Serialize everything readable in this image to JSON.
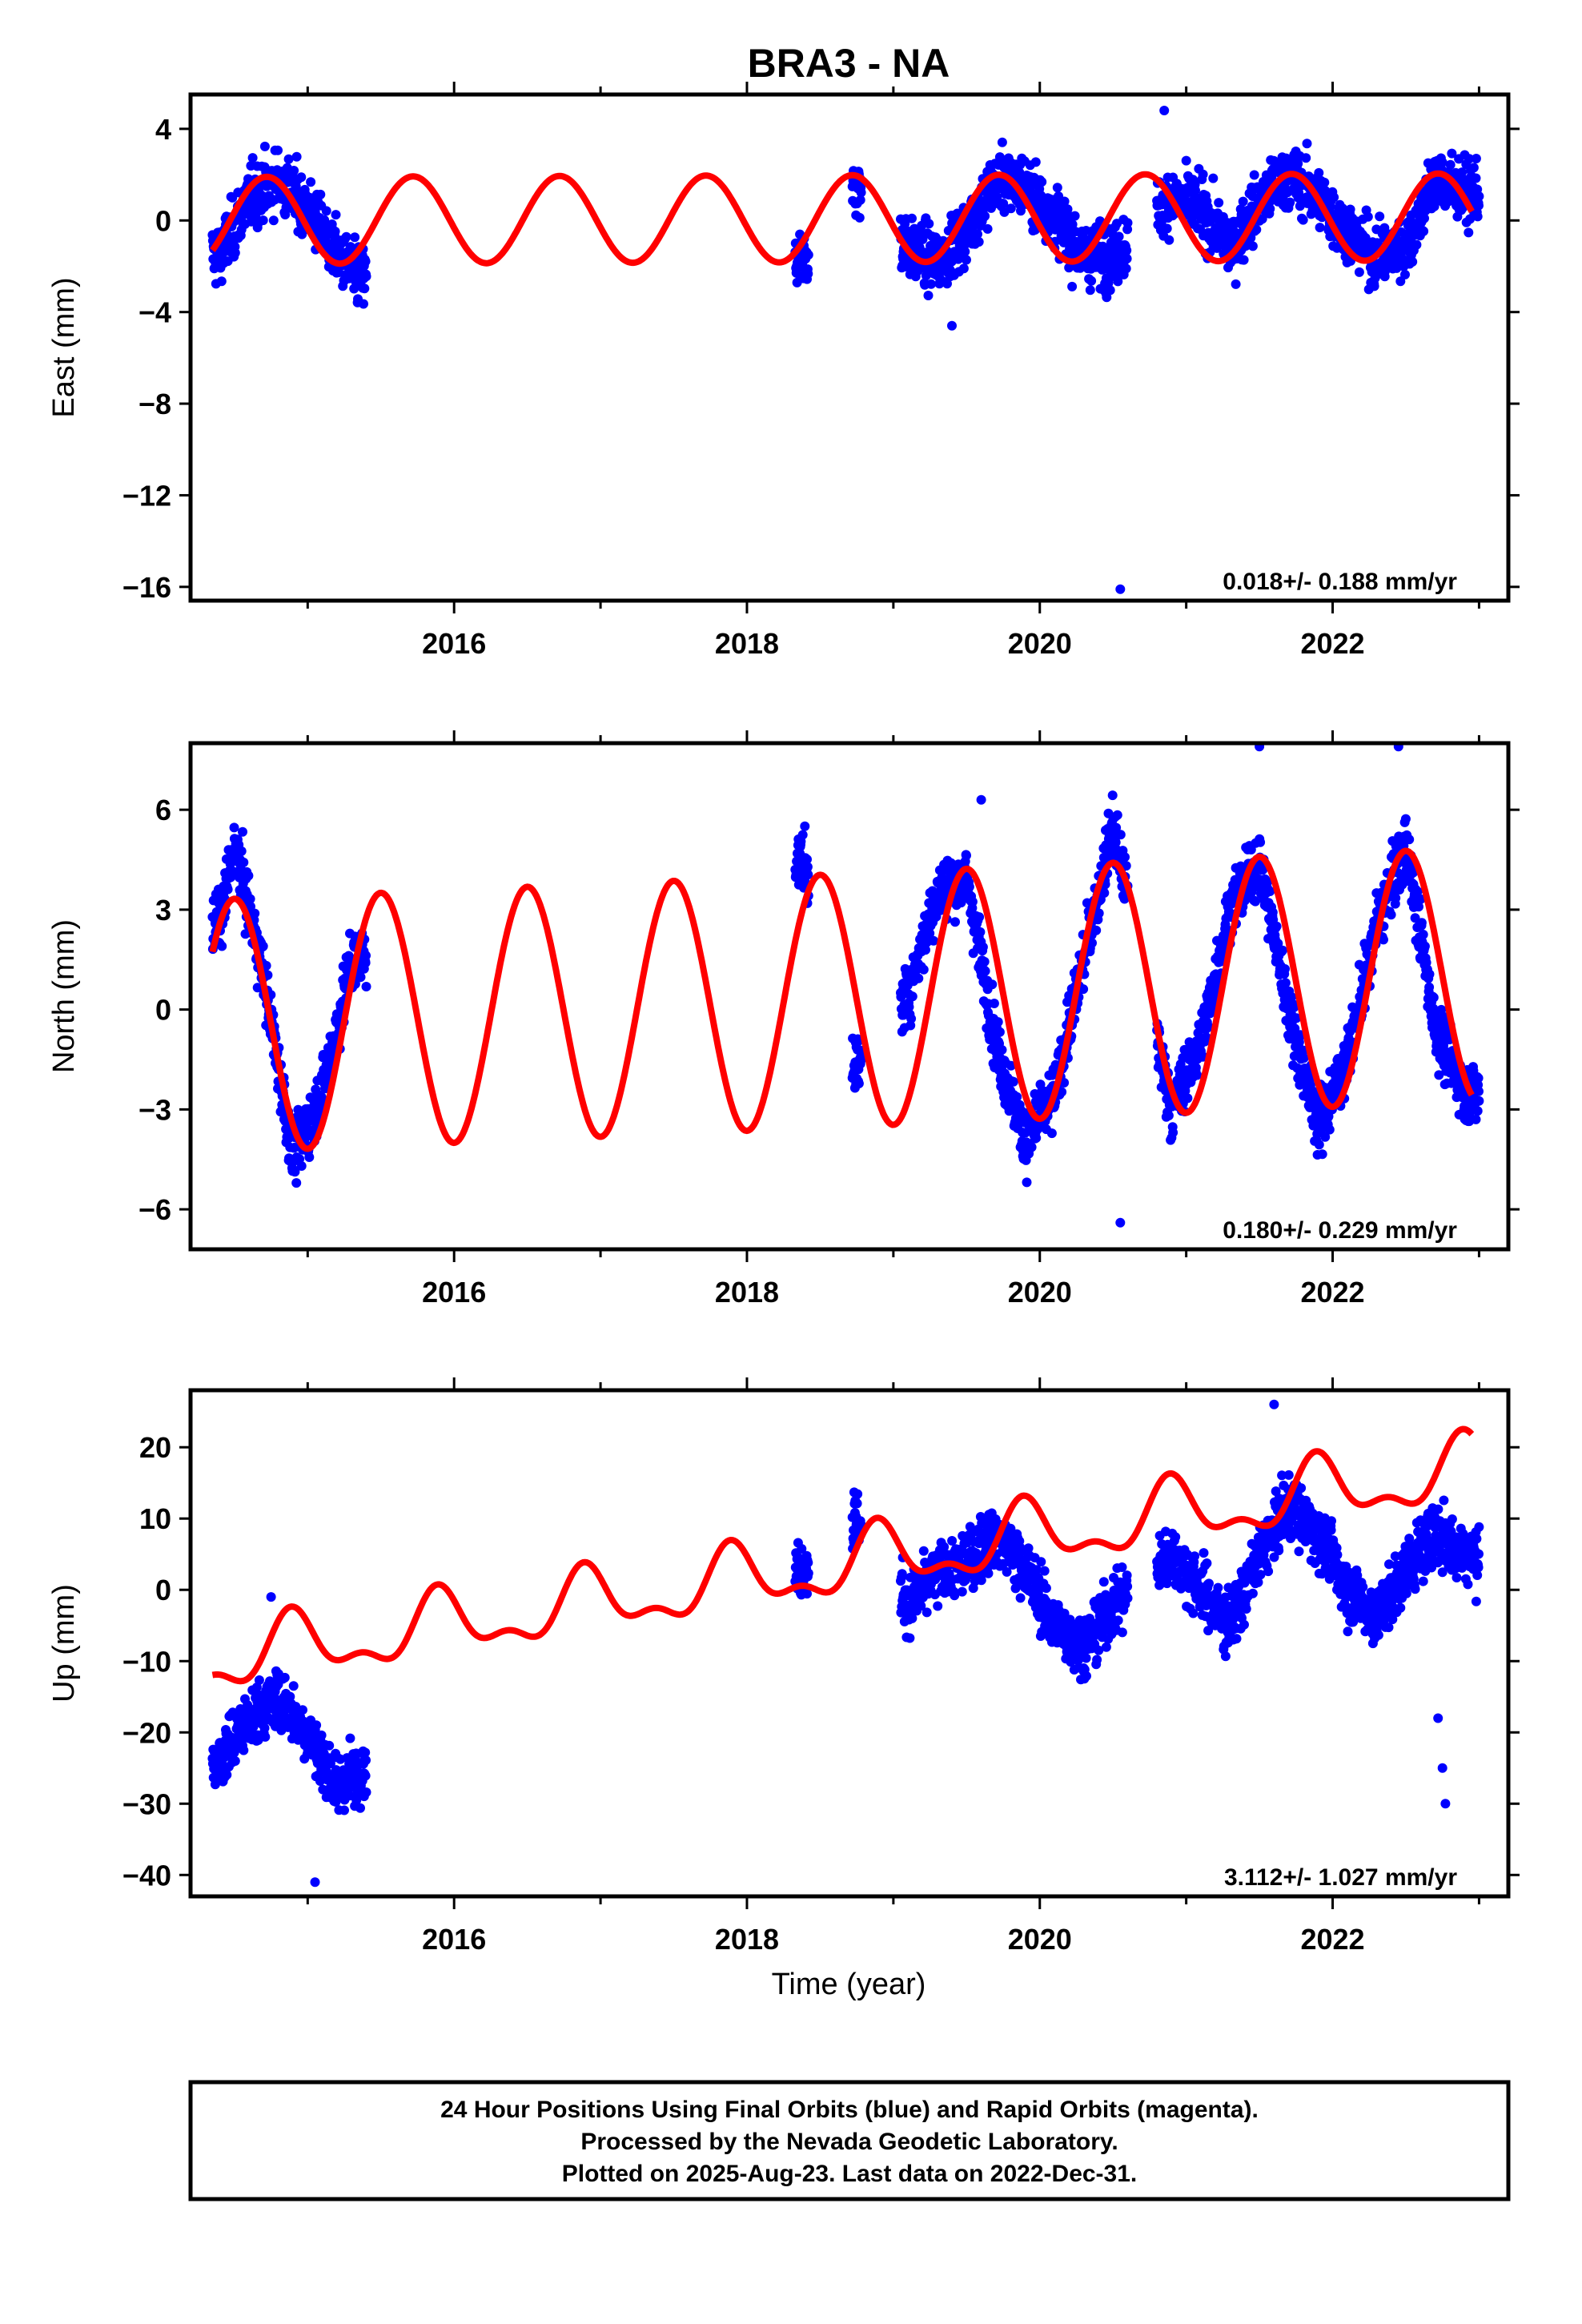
{
  "title": "BRA3 - NA",
  "xlabel": "Time (year)",
  "footer": {
    "line1": "24 Hour Positions Using Final Orbits (blue) and Rapid Orbits (magenta).",
    "line2": "Processed by the Nevada Geodetic Laboratory.",
    "line3": "Plotted on 2025-Aug-23. Last data on 2022-Dec-31."
  },
  "colors": {
    "points": "#0000ff",
    "model": "#ff0000",
    "axis": "#000000"
  },
  "chart_data": [
    {
      "type": "scatter",
      "ylabel": "East (mm)",
      "xlim": [
        2014.2,
        2023.2
      ],
      "ylim": [
        -16.6,
        5.5
      ],
      "xticks": [
        2016,
        2018,
        2020,
        2022
      ],
      "yticks": [
        4,
        0,
        -4,
        -8,
        -12,
        -16
      ],
      "ytick_labels": [
        "4",
        "0",
        "−4",
        "−8",
        "−12",
        "−16"
      ],
      "rate_label": "0.018+/- 0.188 mm/yr",
      "grid": false,
      "series": [
        {
          "kind": "points",
          "segments": [
            [
              2014.35,
              2015.4
            ],
            [
              2018.33,
              2018.42
            ],
            [
              2018.72,
              2018.78
            ],
            [
              2019.05,
              2020.6
            ],
            [
              2020.8,
              2023.0
            ]
          ],
          "x": [
            2014.4,
            2014.6,
            2014.8,
            2015.0,
            2015.2,
            2015.35,
            2018.38,
            2018.75,
            2019.1,
            2019.3,
            2019.5,
            2019.7,
            2019.9,
            2020.1,
            2020.3,
            2020.5,
            2020.9,
            2021.1,
            2021.3,
            2021.5,
            2021.7,
            2021.9,
            2022.1,
            2022.3,
            2022.5,
            2022.7,
            2022.9
          ],
          "y": [
            -1.5,
            1.0,
            1.8,
            0.5,
            -1.5,
            -2.5,
            -1.8,
            1.5,
            -1.2,
            -1.8,
            -0.5,
            1.8,
            1.5,
            0.2,
            -1.5,
            -1.6,
            1.0,
            0.5,
            -1.2,
            0.8,
            2.0,
            1.0,
            -0.5,
            -1.6,
            -1.2,
            1.8,
            1.2
          ],
          "outliers": [
            [
              2020.55,
              -16.1
            ],
            [
              2020.85,
              4.8
            ],
            [
              2019.4,
              -4.6
            ]
          ]
        },
        {
          "kind": "model",
          "offset": 0.0,
          "trend": 0.018,
          "annual_amp": 1.9,
          "annual_peak": 2014.72,
          "semiannual_amp": 0.0,
          "semiannual_peak": 0.0
        }
      ]
    },
    {
      "type": "scatter",
      "ylabel": "North (mm)",
      "xlim": [
        2014.2,
        2023.2
      ],
      "ylim": [
        -7.2,
        8.0
      ],
      "xticks": [
        2016,
        2018,
        2020,
        2022
      ],
      "yticks": [
        6,
        3,
        0,
        -3,
        -6
      ],
      "ytick_labels": [
        "6",
        "3",
        "0",
        "−3",
        "−6"
      ],
      "rate_label": "0.180+/- 0.229 mm/yr",
      "grid": false,
      "series": [
        {
          "kind": "points",
          "segments": [
            [
              2014.35,
              2015.4
            ],
            [
              2018.33,
              2018.42
            ],
            [
              2018.72,
              2018.78
            ],
            [
              2019.05,
              2020.6
            ],
            [
              2020.8,
              2023.0
            ]
          ],
          "x": [
            2014.4,
            2014.5,
            2014.7,
            2014.9,
            2015.1,
            2015.3,
            2018.38,
            2018.75,
            2019.1,
            2019.3,
            2019.5,
            2019.7,
            2019.9,
            2020.1,
            2020.3,
            2020.5,
            2020.9,
            2021.1,
            2021.3,
            2021.5,
            2021.7,
            2021.9,
            2022.1,
            2022.3,
            2022.5,
            2022.7,
            2022.9
          ],
          "y": [
            2.5,
            5.0,
            1.0,
            -4.5,
            -2.5,
            1.5,
            4.5,
            -1.8,
            0.5,
            3.5,
            4.0,
            -1.0,
            -4.0,
            -2.5,
            1.5,
            5.5,
            -3.0,
            -1.0,
            3.0,
            4.5,
            0.0,
            -3.5,
            -1.5,
            2.5,
            5.0,
            -0.5,
            -2.5
          ],
          "outliers": [
            [
              2020.55,
              -6.4
            ],
            [
              2021.5,
              7.9
            ],
            [
              2022.45,
              7.9
            ],
            [
              2019.6,
              6.3
            ]
          ]
        },
        {
          "kind": "model",
          "offset": -0.5,
          "trend": 0.18,
          "annual_amp": 3.8,
          "annual_peak": 2014.5,
          "semiannual_amp": 0.0,
          "semiannual_peak": 0.0
        }
      ]
    },
    {
      "type": "scatter",
      "ylabel": "Up (mm)",
      "xlim": [
        2014.2,
        2023.2
      ],
      "ylim": [
        -43.0,
        28.0
      ],
      "xticks": [
        2016,
        2018,
        2020,
        2022
      ],
      "yticks": [
        20,
        10,
        0,
        -10,
        -20,
        -30,
        -40
      ],
      "ytick_labels": [
        "20",
        "10",
        "0",
        "−10",
        "−20",
        "−30",
        "−40"
      ],
      "rate_label": "3.112+/- 1.027 mm/yr",
      "grid": false,
      "series": [
        {
          "kind": "points",
          "segments": [
            [
              2014.35,
              2015.4
            ],
            [
              2018.33,
              2018.42
            ],
            [
              2018.72,
              2018.78
            ],
            [
              2019.05,
              2020.6
            ],
            [
              2020.8,
              2023.0
            ]
          ],
          "x": [
            2014.4,
            2014.6,
            2014.8,
            2015.0,
            2015.2,
            2015.35,
            2018.38,
            2018.75,
            2019.1,
            2019.3,
            2019.5,
            2019.7,
            2019.9,
            2020.1,
            2020.3,
            2020.5,
            2020.9,
            2021.1,
            2021.3,
            2021.5,
            2021.7,
            2021.9,
            2022.1,
            2022.3,
            2022.5,
            2022.7,
            2022.9
          ],
          "y": [
            -24,
            -18,
            -15,
            -20,
            -28,
            -25,
            3,
            10,
            -2,
            2,
            4,
            8,
            3,
            -5,
            -8,
            -2,
            5,
            0,
            -5,
            5,
            12,
            8,
            0,
            -4,
            3,
            8,
            5
          ],
          "outliers": [
            [
              2022.75,
              -25
            ],
            [
              2022.77,
              -30
            ],
            [
              2022.72,
              -18
            ],
            [
              2021.6,
              26
            ],
            [
              2014.75,
              -1
            ],
            [
              2015.05,
              -41
            ]
          ]
        },
        {
          "kind": "model",
          "offset": -10.0,
          "trend": 3.112,
          "annual_amp": 4.0,
          "annual_peak": 2014.9,
          "semiannual_amp": 2.0,
          "semiannual_peak": 2014.88
        }
      ]
    }
  ]
}
